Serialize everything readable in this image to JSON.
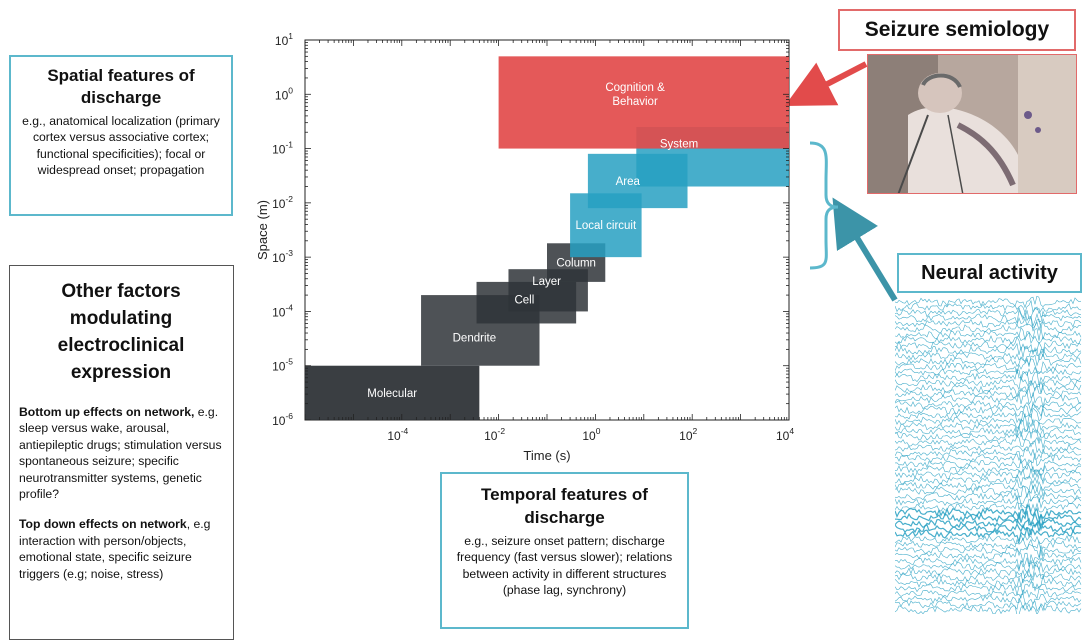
{
  "spatial": {
    "title": "Spatial features of discharge",
    "body": "e.g., anatomical localization (primary cortex versus associative cortex; functional specificities); focal or widespread onset; propagation"
  },
  "other": {
    "title": "Other factors modulating electroclinical expression",
    "bottom_up_head": "Bottom up effects on network,",
    "bottom_up_body": "e.g. sleep versus wake, arousal, antiepileptic drugs; stimulation versus spontaneous seizure; specific neurotransmitter systems, genetic profile?",
    "top_down_head": "Top down effects on network",
    "top_down_comma": ",",
    "top_down_body": "e.g interaction with person/objects, emotional state, specific seizure triggers (e.g; noise, stress)"
  },
  "temporal": {
    "title": "Temporal features of discharge",
    "body": "e.g., seizure onset pattern; discharge frequency (fast versus slower); relations between activity in different structures (phase lag, synchrony)"
  },
  "semiology": {
    "title": "Seizure semiology",
    "photo_icon": "patient-photo-icon"
  },
  "neural": {
    "title": "Neural activity",
    "trace_icon": "eeg-traces-icon"
  },
  "colors": {
    "teal": "#5cb8cc",
    "red": "#e24b4b",
    "dark": "#2f3438",
    "blue": "#27a0c2"
  },
  "chart_data": {
    "type": "area",
    "xlabel": "Time (s)",
    "ylabel": "Space (m)",
    "x_scale": "log",
    "y_scale": "log",
    "xlim": [
      1e-06,
      10000
    ],
    "ylim": [
      1e-06,
      10
    ],
    "x_ticks": [
      {
        "value": 0.0001,
        "base": "10",
        "exp": "-4"
      },
      {
        "value": 0.01,
        "base": "10",
        "exp": "-2"
      },
      {
        "value": 1,
        "base": "10",
        "exp": "0"
      },
      {
        "value": 100,
        "base": "10",
        "exp": "2"
      },
      {
        "value": 10000,
        "base": "10",
        "exp": "4"
      }
    ],
    "y_ticks": [
      {
        "value": 10,
        "base": "10",
        "exp": "1"
      },
      {
        "value": 1,
        "base": "10",
        "exp": "0"
      },
      {
        "value": 0.1,
        "base": "10",
        "exp": "-1"
      },
      {
        "value": 0.01,
        "base": "10",
        "exp": "-2"
      },
      {
        "value": 0.001,
        "base": "10",
        "exp": "-3"
      },
      {
        "value": 0.0001,
        "base": "10",
        "exp": "-4"
      },
      {
        "value": 1e-05,
        "base": "10",
        "exp": "-5"
      },
      {
        "value": 1e-06,
        "base": "10",
        "exp": "-6"
      }
    ],
    "regions": [
      {
        "label": "Molecular",
        "x": [
          1e-06,
          0.004
        ],
        "y": [
          1e-06,
          1e-05
        ],
        "color": "#2f3438",
        "opacity": 0.95
      },
      {
        "label": "Dendrite",
        "x": [
          0.00025,
          0.07
        ],
        "y": [
          1e-05,
          0.0002
        ],
        "color": "#2f3438",
        "opacity": 0.85
      },
      {
        "label": "Cell",
        "x": [
          0.0035,
          0.4
        ],
        "y": [
          6e-05,
          0.00035
        ],
        "color": "#2f3438",
        "opacity": 0.85
      },
      {
        "label": "Layer",
        "x": [
          0.016,
          0.7
        ],
        "y": [
          0.0001,
          0.0006
        ],
        "color": "#2f3438",
        "opacity": 0.85
      },
      {
        "label": "Column",
        "x": [
          0.1,
          1.6
        ],
        "y": [
          0.00035,
          0.0018
        ],
        "color": "#2f3438",
        "opacity": 0.85
      },
      {
        "label": "Local circuit",
        "x": [
          0.3,
          9
        ],
        "y": [
          0.001,
          0.015
        ],
        "color": "#27a0c2",
        "opacity": 0.85
      },
      {
        "label": "Area",
        "x": [
          0.7,
          80
        ],
        "y": [
          0.008,
          0.08
        ],
        "color": "#27a0c2",
        "opacity": 0.85
      },
      {
        "label": "System",
        "x": [
          7,
          10000
        ],
        "y": [
          0.02,
          0.25
        ],
        "color": "#27a0c2",
        "opacity": 0.85
      },
      {
        "label": "Cognition & Behavior",
        "x": [
          0.01,
          10000
        ],
        "y": [
          0.1,
          5
        ],
        "color": "#e24b4b",
        "opacity": 0.92
      }
    ]
  }
}
